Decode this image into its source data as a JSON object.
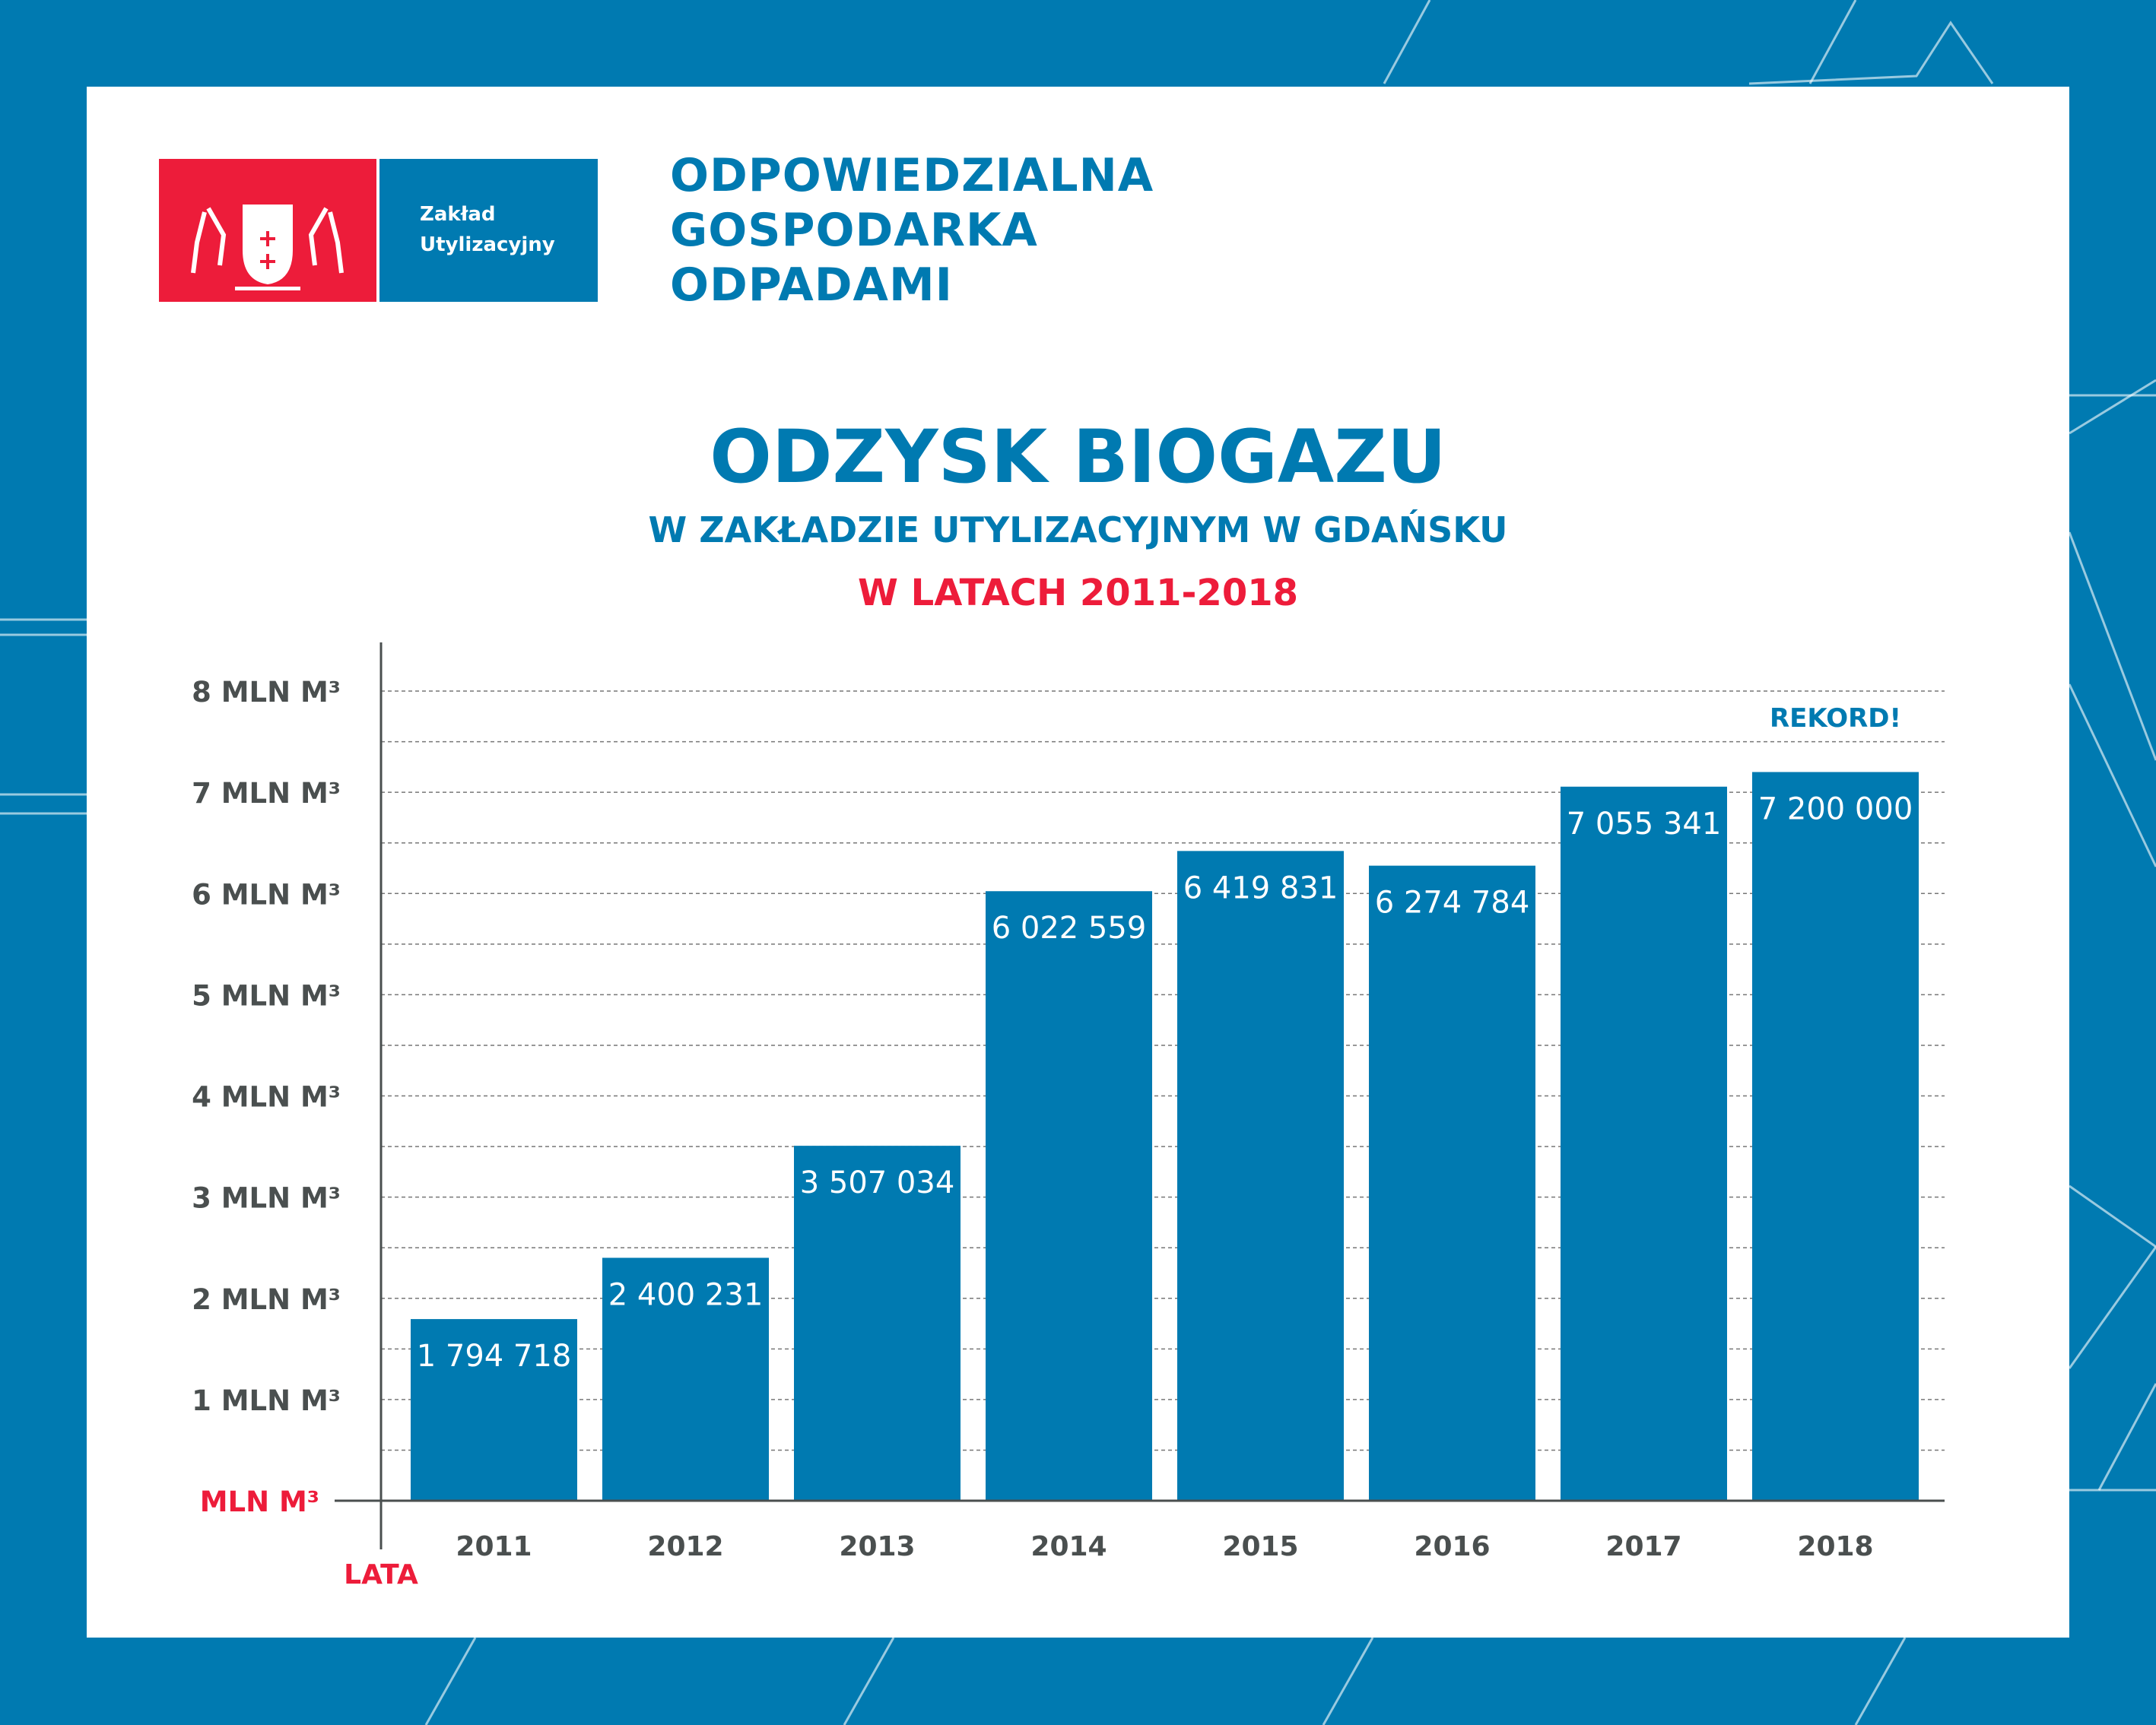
{
  "logo": {
    "line1": "Zakład",
    "line2": "Utylizacyjny"
  },
  "slogan": [
    "ODPOWIEDZIALNA",
    "GOSPODARKA",
    "ODPADAMI"
  ],
  "colors": {
    "background": "#007ab1",
    "bar": "#007ab1",
    "accent_red": "#ed1c3a",
    "axis_text": "#4a4f4f"
  },
  "chart_data": {
    "type": "bar",
    "title": "ODZYSK BIOGAZU",
    "subtitle": "W ZAKŁADZIE UTYLIZACYJNYM W GDAŃSKU",
    "subtitle2": "W LATACH 2011-2018",
    "xlabel": "LATA",
    "ylabel": "MLN M³",
    "categories": [
      "2011",
      "2012",
      "2013",
      "2014",
      "2015",
      "2016",
      "2017",
      "2018"
    ],
    "values": [
      1794718,
      2400231,
      3507034,
      6022559,
      6419831,
      6274784,
      7055341,
      7200000
    ],
    "value_labels": [
      "1 794 718",
      "2 400 231",
      "3 507 034",
      "6 022 559",
      "6 419 831",
      "6 274 784",
      "7 055 341",
      "7 200 000"
    ],
    "ytick_labels": [
      "1 MLN M³",
      "2 MLN M³",
      "3 MLN M³",
      "4 MLN M³",
      "5 MLN M³",
      "6 MLN M³",
      "7 MLN M³",
      "8 MLN M³"
    ],
    "ylim": [
      0,
      8000000
    ],
    "grid": true,
    "annotation": {
      "text": "REKORD!",
      "category": "2018"
    }
  }
}
